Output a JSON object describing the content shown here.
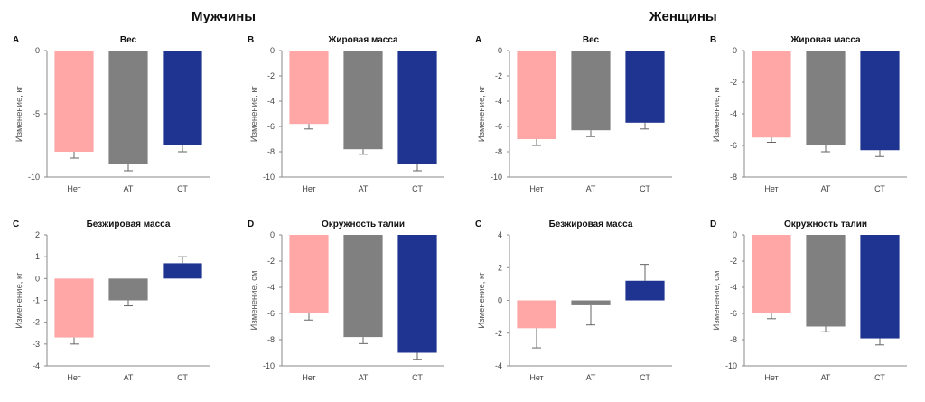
{
  "groups": {
    "men": "Мужчины",
    "women": "Женщины"
  },
  "colors": {
    "Нет": "#FFA6A6",
    "АТ": "#808080",
    "СТ": "#1F3390"
  },
  "chart_data": [
    {
      "id": "men-A",
      "type": "bar",
      "letter": "A",
      "title": "Вес",
      "ylabel": "Изменение, кг",
      "categories": [
        "Нет",
        "АТ",
        "СТ"
      ],
      "values": [
        -8.0,
        -9.0,
        -7.5
      ],
      "errors": [
        0.5,
        0.5,
        0.5
      ],
      "ylim": [
        -10,
        0
      ],
      "yticks": [
        0,
        -5,
        -10
      ],
      "grid": false
    },
    {
      "id": "men-B",
      "type": "bar",
      "letter": "B",
      "title": "Жировая масса",
      "ylabel": "Изменение, кг",
      "categories": [
        "Нет",
        "АТ",
        "СТ"
      ],
      "values": [
        -5.8,
        -7.8,
        -9.0
      ],
      "errors": [
        0.4,
        0.4,
        0.5
      ],
      "ylim": [
        -10,
        0
      ],
      "yticks": [
        0,
        -2,
        -4,
        -6,
        -8,
        -10
      ],
      "grid": false
    },
    {
      "id": "men-C",
      "type": "bar",
      "letter": "C",
      "title": "Безжировая масса",
      "ylabel": "Изменение, кг",
      "categories": [
        "Нет",
        "АТ",
        "СТ"
      ],
      "values": [
        -2.7,
        -1.0,
        0.7
      ],
      "errors": [
        0.3,
        0.25,
        0.3
      ],
      "ylim": [
        -4,
        2
      ],
      "yticks": [
        2,
        1,
        0,
        -1,
        -2,
        -3,
        -4
      ],
      "grid": false
    },
    {
      "id": "men-D",
      "type": "bar",
      "letter": "D",
      "title": "Окружность талии",
      "ylabel": "Изменение, см",
      "categories": [
        "Нет",
        "АТ",
        "СТ"
      ],
      "values": [
        -6.0,
        -7.8,
        -9.0
      ],
      "errors": [
        0.5,
        0.5,
        0.5
      ],
      "ylim": [
        -10,
        0
      ],
      "yticks": [
        0,
        -2,
        -4,
        -6,
        -8,
        -10
      ],
      "grid": false
    },
    {
      "id": "women-A",
      "type": "bar",
      "letter": "A",
      "title": "Вес",
      "ylabel": "Изменение, кг",
      "categories": [
        "Нет",
        "АТ",
        "СТ"
      ],
      "values": [
        -7.0,
        -6.3,
        -5.7
      ],
      "errors": [
        0.5,
        0.5,
        0.5
      ],
      "ylim": [
        -10,
        0
      ],
      "yticks": [
        0,
        -2,
        -4,
        -6,
        -8,
        -10
      ],
      "grid": false
    },
    {
      "id": "women-B",
      "type": "bar",
      "letter": "B",
      "title": "Жировая масса",
      "ylabel": "Изменение, кг",
      "categories": [
        "Нет",
        "АТ",
        "СТ"
      ],
      "values": [
        -5.5,
        -6.0,
        -6.3
      ],
      "errors": [
        0.3,
        0.4,
        0.4
      ],
      "ylim": [
        -8,
        0
      ],
      "yticks": [
        0,
        -2,
        -4,
        -6,
        -8
      ],
      "grid": false
    },
    {
      "id": "women-C",
      "type": "bar",
      "letter": "C",
      "title": "Безжировая масса",
      "ylabel": "Изменение, кг",
      "categories": [
        "Нет",
        "АТ",
        "СТ"
      ],
      "values": [
        -1.7,
        -0.3,
        1.2
      ],
      "errors": [
        1.2,
        1.2,
        1.0
      ],
      "ylim": [
        -4,
        4
      ],
      "yticks": [
        4,
        2,
        0,
        -2,
        -4
      ],
      "grid": false
    },
    {
      "id": "women-D",
      "type": "bar",
      "letter": "D",
      "title": "Окружность талии",
      "ylabel": "Изменение, см",
      "categories": [
        "Нет",
        "АТ",
        "СТ"
      ],
      "values": [
        -6.0,
        -7.0,
        -7.9
      ],
      "errors": [
        0.4,
        0.4,
        0.5
      ],
      "ylim": [
        -10,
        0
      ],
      "yticks": [
        0,
        -2,
        -4,
        -6,
        -8,
        -10
      ],
      "grid": false
    }
  ]
}
